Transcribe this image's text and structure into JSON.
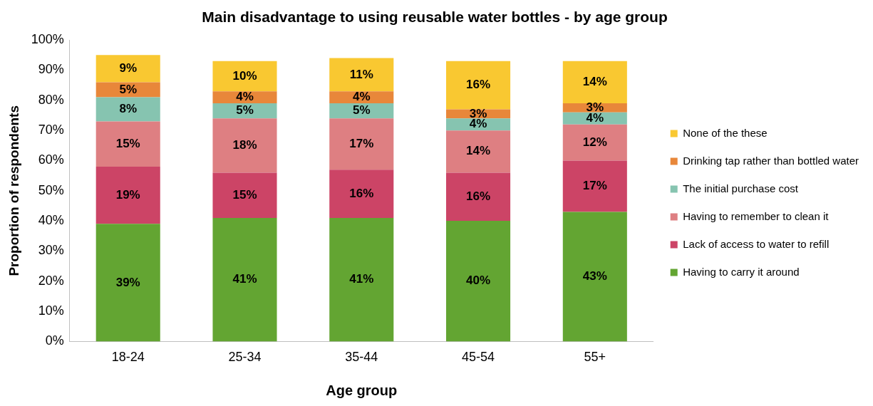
{
  "chart_data": {
    "type": "bar",
    "stacked": true,
    "title": "Main disadvantage to using reusable water bottles - by age group",
    "xlabel": "Age group",
    "ylabel": "Proportion of respondents",
    "categories": [
      "18-24",
      "25-34",
      "35-44",
      "45-54",
      "55+"
    ],
    "series": [
      {
        "name": "Having to carry it around",
        "color": "#63a532",
        "values": [
          39,
          41,
          41,
          40,
          43
        ],
        "value_labels": [
          "39%",
          "41%",
          "41%",
          "40%",
          "43%"
        ]
      },
      {
        "name": "Lack of access to water to refill",
        "color": "#cc4466",
        "values": [
          19,
          15,
          16,
          16,
          17
        ],
        "value_labels": [
          "19%",
          "15%",
          "16%",
          "16%",
          "17%"
        ]
      },
      {
        "name": "Having to remember to clean it",
        "color": "#de7f82",
        "values": [
          15,
          18,
          17,
          14,
          12
        ],
        "value_labels": [
          "15%",
          "18%",
          "17%",
          "14%",
          "12%"
        ]
      },
      {
        "name": "The initial purchase cost",
        "color": "#86c4b0",
        "values": [
          8,
          5,
          5,
          4,
          4
        ],
        "value_labels": [
          "8%",
          "5%",
          "5%",
          "4%",
          "4%"
        ]
      },
      {
        "name": "Drinking tap rather than bottled water",
        "color": "#e8873a",
        "values": [
          5,
          4,
          4,
          3,
          3
        ],
        "value_labels": [
          "5%",
          "4%",
          "4%",
          "3%",
          "3%"
        ]
      },
      {
        "name": "None of the these",
        "color": "#f9c831",
        "values": [
          9,
          10,
          11,
          16,
          14
        ],
        "value_labels": [
          "9%",
          "10%",
          "11%",
          "16%",
          "14%"
        ]
      }
    ],
    "ylim": [
      0,
      100
    ],
    "yticks": [
      {
        "value": 0,
        "label": "0%"
      },
      {
        "value": 10,
        "label": "10%"
      },
      {
        "value": 20,
        "label": "20%"
      },
      {
        "value": 30,
        "label": "30%"
      },
      {
        "value": 40,
        "label": "40%"
      },
      {
        "value": 50,
        "label": "50%"
      },
      {
        "value": 60,
        "label": "60%"
      },
      {
        "value": 70,
        "label": "70%"
      },
      {
        "value": 80,
        "label": "80%"
      },
      {
        "value": 90,
        "label": "90%"
      },
      {
        "value": 100,
        "label": "100%"
      }
    ],
    "grid": false,
    "legend": "right"
  }
}
